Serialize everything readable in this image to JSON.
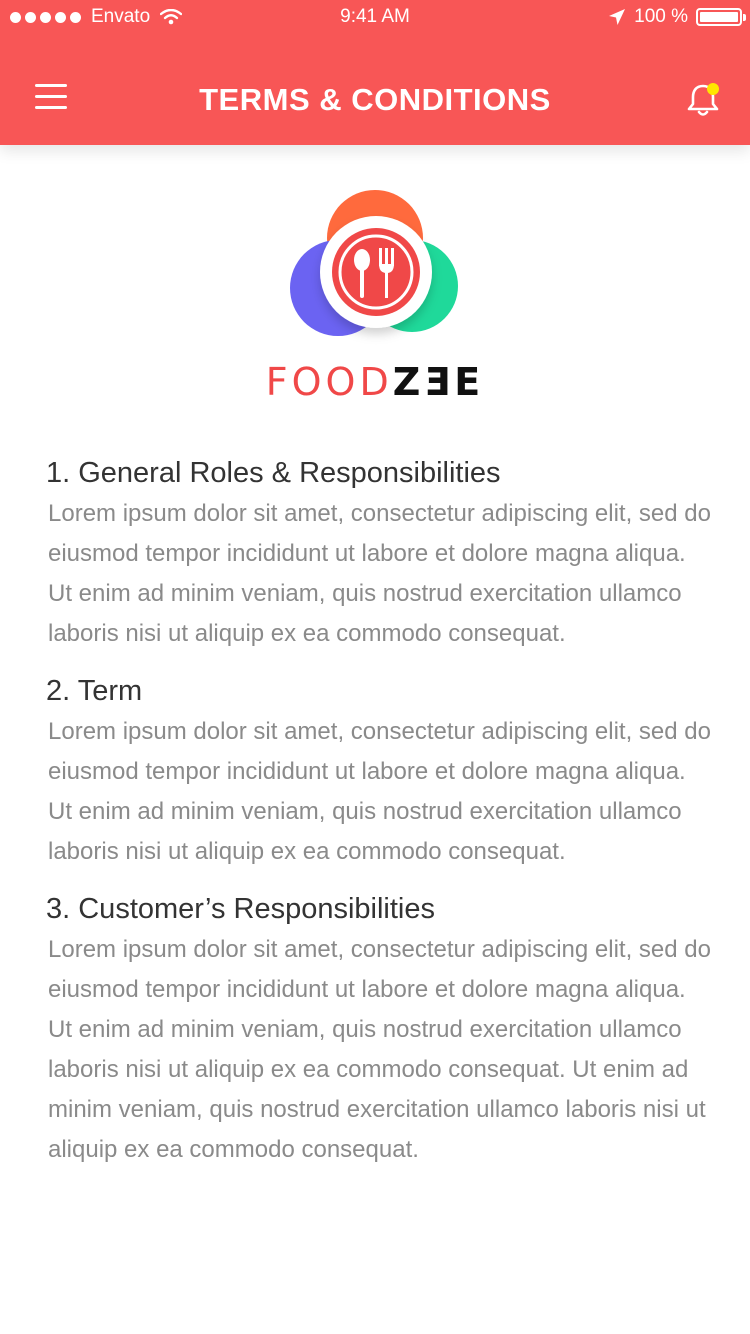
{
  "status_bar": {
    "carrier": "Envato",
    "time": "9:41 AM",
    "battery": "100 %",
    "signal_icon": "signal-dots-icon",
    "wifi_icon": "wifi-icon",
    "location_icon": "location-arrow-icon",
    "battery_icon": "battery-icon"
  },
  "header": {
    "title": "TERMS & CONDITIONS",
    "menu_icon": "hamburger-menu-icon",
    "bell_icon": "bell-icon",
    "notification_dot_color": "#FFE600",
    "background_color": "#F85656"
  },
  "logo": {
    "brand_part1": "FOOD",
    "brand_part2": "ZƎE",
    "colors": {
      "top": "#FF6A3D",
      "left": "#6B63F2",
      "right": "#1FD99A",
      "center": "#F04848"
    }
  },
  "sections": [
    {
      "title": "1. General Roles & Responsibilities",
      "body": "Lorem ipsum dolor sit amet, consectetur adipiscing elit, sed do eiusmod tempor incididunt ut labore et dolore magna aliqua. Ut enim ad minim veniam, quis nostrud exercitation ullamco laboris nisi ut aliquip ex ea commodo consequat."
    },
    {
      "title": "2. Term",
      "body": "Lorem ipsum dolor sit amet, consectetur adipiscing elit, sed do eiusmod tempor incididunt ut labore et dolore magna aliqua. Ut enim ad minim veniam, quis nostrud exercitation ullamco laboris nisi ut aliquip ex ea commodo consequat."
    },
    {
      "title": "3. Customer’s Responsibilities",
      "body": "Lorem ipsum dolor sit amet, consectetur adipiscing elit, sed do eiusmod tempor incididunt ut labore et dolore magna aliqua. Ut enim ad minim veniam, quis nostrud exercitation ullamco laboris nisi ut aliquip ex ea commodo consequat. Ut enim ad minim veniam, quis nostrud exercitation ullamco laboris nisi ut aliquip ex ea commodo consequat."
    }
  ]
}
